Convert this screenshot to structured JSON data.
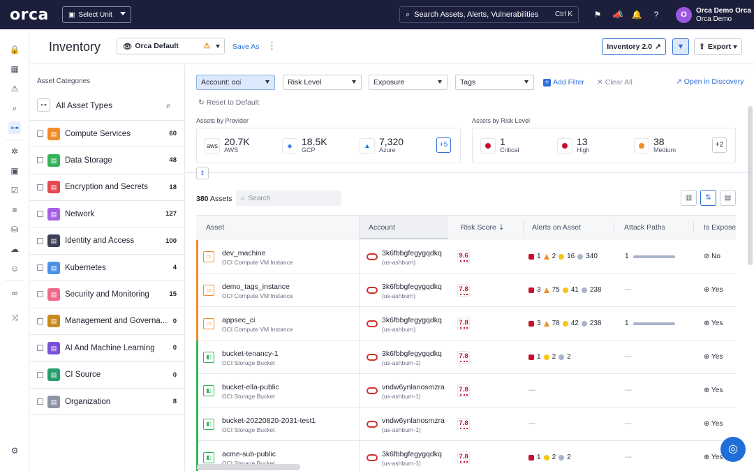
{
  "app": {
    "logo": "orca"
  },
  "topbar": {
    "unit_select": "Select Unit",
    "search_placeholder": "Search Assets, Alerts, Vulnerabilities",
    "search_shortcut": "Ctrl K",
    "user": {
      "initial": "O",
      "name": "Orca Demo Orca",
      "org": "Orca Demo"
    }
  },
  "header": {
    "title": "Inventory",
    "view": "Orca Default",
    "save_as": "Save As",
    "inventory_btn": "Inventory 2.0",
    "export_btn": "Export"
  },
  "categories": {
    "title": "Asset Categories",
    "all_label": "All Asset Types",
    "items": [
      {
        "label": "Compute Services",
        "count": "60",
        "color": "#f28c28"
      },
      {
        "label": "Data Storage",
        "count": "48",
        "color": "#34b35a"
      },
      {
        "label": "Encryption and Secrets",
        "count": "18",
        "color": "#e5484d"
      },
      {
        "label": "Network",
        "count": "127",
        "color": "#a660e8"
      },
      {
        "label": "Identity and Access",
        "count": "100",
        "color": "#3b3f55"
      },
      {
        "label": "Kubernetes",
        "count": "4",
        "color": "#4a8fe8"
      },
      {
        "label": "Security and Monitoring",
        "count": "15",
        "color": "#f06a8a"
      },
      {
        "label": "Management and Governa...",
        "count": "0",
        "color": "#c78a1c"
      },
      {
        "label": "AI And Machine Learning",
        "count": "0",
        "color": "#7b4fd8"
      },
      {
        "label": "CI Source",
        "count": "0",
        "color": "#2a9d6e"
      },
      {
        "label": "Organization",
        "count": "8",
        "color": "#8e93a6"
      }
    ]
  },
  "filters": {
    "account": "Account: oci",
    "risk": "Risk Level",
    "exposure": "Exposure",
    "tags": "Tags",
    "add_filter": "Add Filter",
    "clear_all": "Clear All",
    "open_discovery": "Open in Discovery",
    "reset": "Reset to Default"
  },
  "summary": {
    "by_provider_title": "Assets by Provider",
    "providers": [
      {
        "value": "20.7K",
        "label": "AWS",
        "icon": "aws"
      },
      {
        "value": "18.5K",
        "label": "GCP",
        "icon": "gcp"
      },
      {
        "value": "7,320",
        "label": "Azure",
        "icon": "azure"
      }
    ],
    "providers_more": "+5",
    "by_risk_title": "Assets by Risk Level",
    "risks": [
      {
        "value": "1",
        "label": "Critical",
        "color": "#c8102e"
      },
      {
        "value": "13",
        "label": "High",
        "color": "#c8102e"
      },
      {
        "value": "38",
        "label": "Medium",
        "color": "#f28c28"
      }
    ],
    "risks_more": "+2"
  },
  "table": {
    "count": "380",
    "count_label": "Assets",
    "search_placeholder": "Search",
    "columns": {
      "asset": "Asset",
      "account": "Account",
      "risk": "Risk Score",
      "alerts": "Alerts on Asset",
      "paths": "Attack Paths",
      "exposed": "Is Exposed"
    },
    "rows": [
      {
        "name": "dev_machine",
        "type": "OCI Compute VM Instance",
        "account": "3k6fbbgfegygqdkq",
        "region": "(us-ashburn)",
        "score": "9.6",
        "alerts": [
          "1",
          "2",
          "16",
          "340"
        ],
        "paths": "1",
        "exposed": "No",
        "kind": "compute"
      },
      {
        "name": "demo_tags_instance",
        "type": "OCI Compute VM Instance",
        "account": "3k6fbbgfegygqdkq",
        "region": "(us-ashburn)",
        "score": "7.8",
        "alerts": [
          "3",
          "75",
          "41",
          "238"
        ],
        "paths": "---",
        "exposed": "Yes",
        "kind": "compute"
      },
      {
        "name": "appsec_ci",
        "type": "OCI Compute VM Instance",
        "account": "3k6fbbgfegygqdkq",
        "region": "(us-ashburn)",
        "score": "7.8",
        "alerts": [
          "3",
          "78",
          "42",
          "238"
        ],
        "paths": "1",
        "exposed": "Yes",
        "kind": "compute"
      },
      {
        "name": "bucket-tenancy-1",
        "type": "OCI Storage Bucket",
        "account": "3k6fbbgfegygqdkq",
        "region": "(us-ashburn-1)",
        "score": "7.8",
        "alerts": [
          "1",
          "",
          "2",
          "2"
        ],
        "paths": "---",
        "exposed": "Yes",
        "kind": "storage"
      },
      {
        "name": "bucket-ella-public",
        "type": "OCI Storage Bucket",
        "account": "vndw6ynlanosmzra",
        "region": "(us-ashburn-1)",
        "score": "7.8",
        "alerts": [],
        "alerts_empty": "---",
        "paths": "---",
        "exposed": "Yes",
        "kind": "storage"
      },
      {
        "name": "bucket-20220820-2031-test1",
        "type": "OCI Storage Bucket",
        "account": "vndw6ynlanosmzra",
        "region": "(us-ashburn-1)",
        "score": "7.8",
        "alerts": [],
        "alerts_empty": "---",
        "paths": "---",
        "exposed": "Yes",
        "kind": "storage"
      },
      {
        "name": "acme-sub-public",
        "type": "OCI Storage Bucket",
        "account": "3k6fbbgfegygqdkq",
        "region": "(us-ashburn-1)",
        "score": "7.8",
        "alerts": [
          "1",
          "",
          "2",
          "2"
        ],
        "paths": "---",
        "exposed": "Yes",
        "kind": "storage"
      }
    ]
  }
}
